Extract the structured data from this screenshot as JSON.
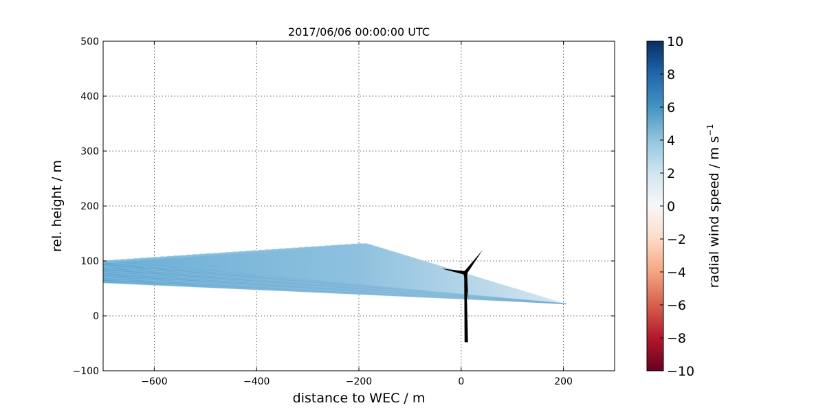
{
  "chart_data": {
    "type": "scan",
    "title": "2017/06/06 00:00:00 UTC",
    "xlabel": "distance to WEC / m",
    "ylabel": "rel. height / m",
    "xlim": [
      -700,
      300
    ],
    "ylim": [
      -100,
      500
    ],
    "xticks": [
      -600,
      -400,
      -200,
      0,
      200
    ],
    "yticks": [
      -100,
      0,
      100,
      200,
      300,
      400,
      500
    ],
    "grid": true,
    "scan_region": {
      "outline": [
        [
          -700,
          100
        ],
        [
          -185,
          132
        ],
        [
          205,
          22
        ],
        [
          -700,
          60
        ]
      ],
      "typical_radial_wind_speed": 4
    },
    "turbine": {
      "hub": [
        8,
        78
      ],
      "tower_base": [
        10,
        -48
      ],
      "blade_tips": [
        [
          42,
          120
        ],
        [
          -38,
          86
        ],
        [
          14,
          30
        ]
      ]
    },
    "colorbar": {
      "label": "radial wind speed / m s",
      "label_exponent": "−1",
      "range": [
        -10,
        10
      ],
      "ticks": [
        10,
        8,
        6,
        4,
        2,
        0,
        -2,
        -4,
        -6,
        -8,
        -10
      ],
      "tick_labels": [
        "10",
        "8",
        "6",
        "4",
        "2",
        "0",
        "−2",
        "−4",
        "−6",
        "−8",
        "−10"
      ],
      "colormap": [
        "#67001f",
        "#b2182b",
        "#d6604d",
        "#f4a582",
        "#fddbc7",
        "#f7f7f7",
        "#d1e5f0",
        "#92c5de",
        "#4393c3",
        "#2166ac",
        "#053061"
      ]
    }
  }
}
